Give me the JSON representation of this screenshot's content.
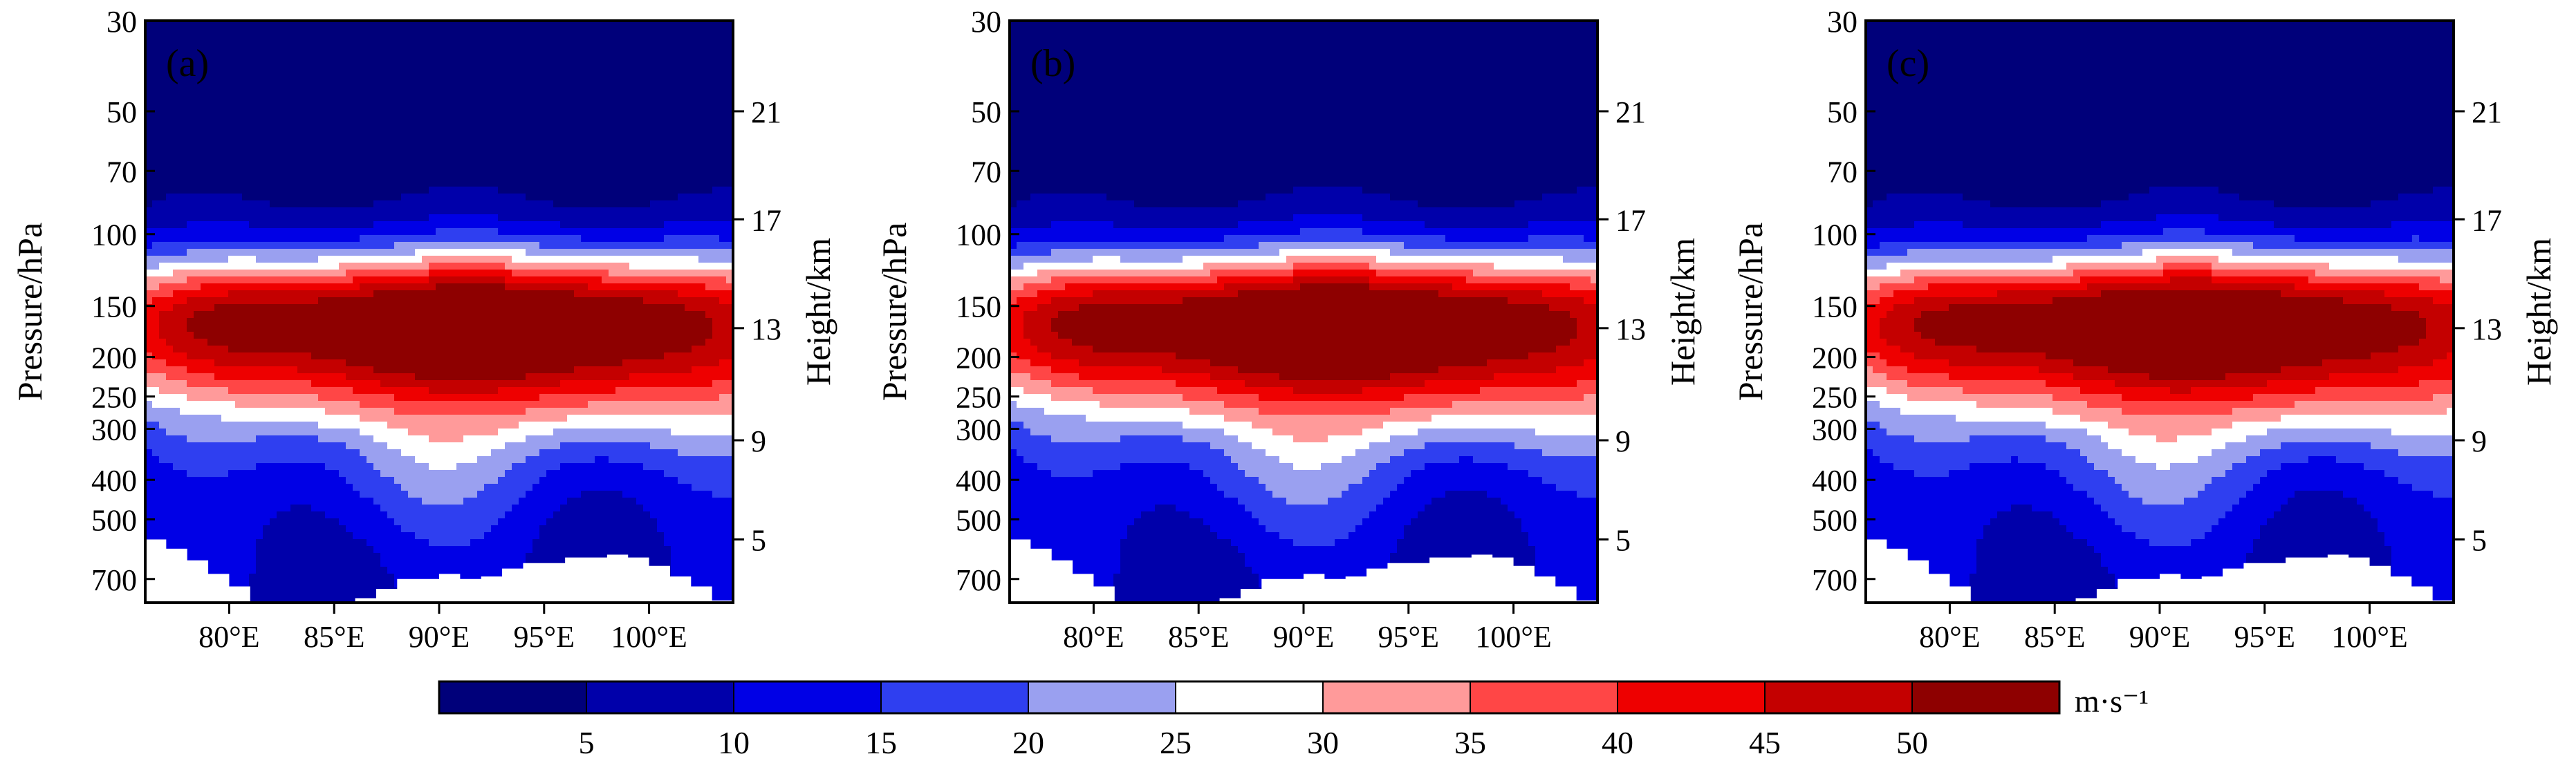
{
  "chart_data": {
    "type": "contour",
    "panels": [
      {
        "label": "(a)",
        "peak_speed": 55,
        "core_lon": 92,
        "core_pressure": 165
      },
      {
        "label": "(b)",
        "peak_speed": 55,
        "core_lon": 92,
        "core_pressure": 165
      },
      {
        "label": "(c)",
        "peak_speed": 54,
        "core_lon": 92,
        "core_pressure": 165
      }
    ],
    "x_axis": {
      "range": [
        76,
        104
      ],
      "ticks": [
        80,
        85,
        90,
        95,
        100
      ],
      "tick_labels": [
        "80°E",
        "85°E",
        "90°E",
        "95°E",
        "100°E"
      ]
    },
    "left_axis": {
      "label": "Pressure/hPa",
      "range": [
        30,
        800
      ],
      "scale": "log",
      "ticks": [
        30,
        50,
        70,
        100,
        150,
        200,
        250,
        300,
        400,
        500,
        700
      ],
      "tick_labels": [
        "30",
        "50",
        "70",
        "100",
        "150",
        "200",
        "250",
        "300",
        "400",
        "500",
        "700"
      ]
    },
    "right_axis": {
      "label": "Height/km",
      "ticks": [
        21,
        17,
        13,
        9,
        5
      ],
      "tick_labels": [
        "21",
        "17",
        "13",
        "9",
        "5"
      ],
      "tick_pressures": [
        50,
        92,
        170,
        320,
        560
      ]
    },
    "colorbar": {
      "levels": [
        5,
        10,
        15,
        20,
        25,
        30,
        35,
        40,
        45,
        50
      ],
      "level_labels": [
        "5",
        "10",
        "15",
        "20",
        "25",
        "30",
        "35",
        "40",
        "45",
        "50"
      ],
      "colors": [
        "#00007a",
        "#0000aa",
        "#0000e6",
        "#2f3ff0",
        "#9aa0f0",
        "#ffffff",
        "#ff9a9a",
        "#ff4646",
        "#ee0000",
        "#c40000",
        "#8e0000"
      ],
      "unit": "m·s⁻¹"
    }
  }
}
